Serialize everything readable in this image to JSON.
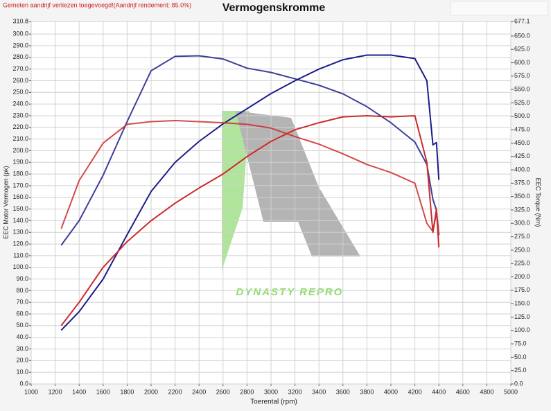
{
  "chart_data": {
    "type": "line",
    "title": "Vermogenskromme",
    "notice": "Gemeten aandrijf verliezen toegevoegd!(Aandrijf rendement: 85.0%)",
    "watermark": "DYNASTY REPRO",
    "xlabel": "Toerental (rpm)",
    "ylabel": "EEC Motor Vermogen (pk)",
    "y2label": "EEC Torque (Nm)",
    "grid": true,
    "xlim": [
      1000,
      5000
    ],
    "xticks": [
      1000,
      1200,
      1400,
      1600,
      1800,
      2000,
      2200,
      2400,
      2600,
      2800,
      3000,
      3200,
      3400,
      3600,
      3800,
      4000,
      4200,
      4400,
      4600,
      4800,
      5000
    ],
    "ylim": [
      0,
      310.8
    ],
    "yticks": [
      {
        "value": 0,
        "label": "0.0"
      },
      {
        "value": 10,
        "label": "10.0"
      },
      {
        "value": 20,
        "label": "20.0"
      },
      {
        "value": 30,
        "label": "30.0"
      },
      {
        "value": 40,
        "label": "40.0"
      },
      {
        "value": 50,
        "label": "50.0"
      },
      {
        "value": 60,
        "label": "60.0"
      },
      {
        "value": 70,
        "label": "70.0"
      },
      {
        "value": 80,
        "label": "80.0"
      },
      {
        "value": 90,
        "label": "90.0"
      },
      {
        "value": 100,
        "label": "100.0"
      },
      {
        "value": 110,
        "label": "110.0"
      },
      {
        "value": 120,
        "label": "120.0"
      },
      {
        "value": 130,
        "label": "130.0"
      },
      {
        "value": 140,
        "label": "140.0"
      },
      {
        "value": 150,
        "label": "150.0"
      },
      {
        "value": 160,
        "label": "160.0"
      },
      {
        "value": 170,
        "label": "170.0"
      },
      {
        "value": 180,
        "label": "180.0"
      },
      {
        "value": 190,
        "label": "190.0"
      },
      {
        "value": 200,
        "label": "200.0"
      },
      {
        "value": 210,
        "label": "210.0"
      },
      {
        "value": 220,
        "label": "220.0"
      },
      {
        "value": 230,
        "label": "230.0"
      },
      {
        "value": 240,
        "label": "240.0"
      },
      {
        "value": 250,
        "label": "250.0"
      },
      {
        "value": 260,
        "label": "260.0"
      },
      {
        "value": 270,
        "label": "270.0"
      },
      {
        "value": 280,
        "label": "280.0"
      },
      {
        "value": 290,
        "label": "290.0"
      },
      {
        "value": 300,
        "label": "300.0"
      },
      310.8
    ],
    "y2lim": [
      0,
      677.1
    ],
    "y2ticks": [
      {
        "value": 0,
        "label": "0.0"
      },
      {
        "value": 25,
        "label": "25.0"
      },
      {
        "value": 50,
        "label": "50.0"
      },
      {
        "value": 75,
        "label": "75.0"
      },
      {
        "value": 100,
        "label": "100.0"
      },
      {
        "value": 125,
        "label": "125.0"
      },
      {
        "value": 150,
        "label": "150.0"
      },
      {
        "value": 175,
        "label": "175.0"
      },
      {
        "value": 200,
        "label": "200.0"
      },
      {
        "value": 225,
        "label": "225.0"
      },
      {
        "value": 250,
        "label": "250.0"
      },
      {
        "value": 275,
        "label": "275.0"
      },
      {
        "value": 300,
        "label": "300.0"
      },
      {
        "value": 325,
        "label": "325.0"
      },
      {
        "value": 350,
        "label": "350.0"
      },
      {
        "value": 375,
        "label": "375.0"
      },
      {
        "value": 400,
        "label": "400.0"
      },
      {
        "value": 425,
        "label": "425.0"
      },
      {
        "value": 450,
        "label": "450.0"
      },
      {
        "value": 475,
        "label": "475.0"
      },
      {
        "value": 500,
        "label": "500.0"
      },
      {
        "value": 525,
        "label": "525.0"
      },
      {
        "value": 550,
        "label": "550.0"
      },
      {
        "value": 575,
        "label": "575.0"
      },
      {
        "value": 600,
        "label": "600.0"
      },
      {
        "value": 625,
        "label": "625.0"
      },
      {
        "value": 650,
        "label": "650.0"
      },
      677.1
    ],
    "x": [
      1250,
      1400,
      1600,
      1800,
      2000,
      2200,
      2400,
      2600,
      2800,
      3000,
      3200,
      3400,
      3600,
      3800,
      4000,
      4200,
      4300,
      4350,
      4380,
      4400
    ],
    "series": [
      {
        "color": "#1c1c8a",
        "values": [
          46,
          62,
          90,
          128,
          165,
          190,
          208,
          223,
          236,
          249,
          260,
          270,
          278,
          282,
          282,
          279,
          260,
          205,
          207,
          175
        ]
      },
      {
        "color": "#1c1c8a",
        "axis": "y2",
        "values": [
          259,
          305,
          390,
          490,
          585,
          612,
          613,
          607,
          590,
          582,
          570,
          558,
          542,
          518,
          488,
          452,
          410,
          345,
          325,
          278
        ]
      },
      {
        "color": "#cc2a2a",
        "values": [
          50,
          70,
          100,
          122,
          140,
          155,
          168,
          180,
          195,
          208,
          218,
          224,
          229,
          230,
          229,
          230,
          190,
          130,
          150,
          117
        ]
      },
      {
        "color": "#cc2a2a",
        "axis": "y2",
        "values": [
          290,
          380,
          450,
          485,
          490,
          492,
          490,
          488,
          485,
          478,
          462,
          448,
          430,
          410,
          395,
          375,
          300,
          285,
          320,
          280
        ]
      }
    ]
  }
}
